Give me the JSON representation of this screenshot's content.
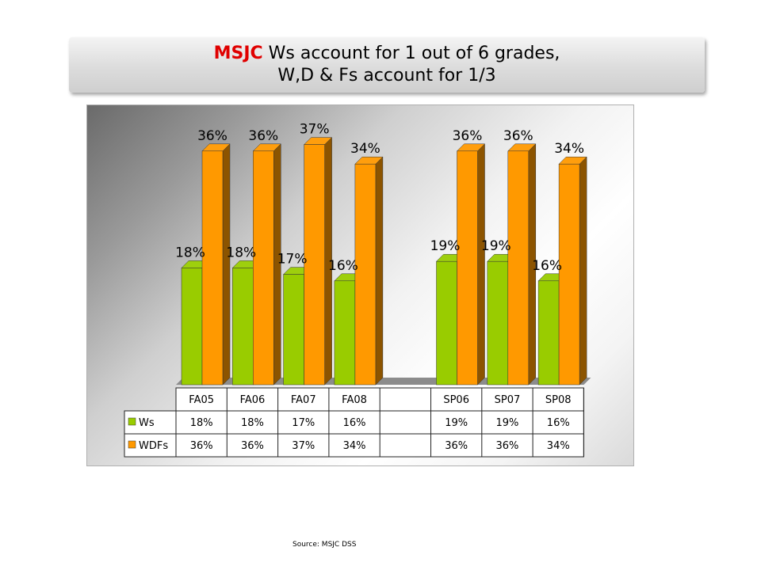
{
  "title": {
    "brand": "MSJC",
    "line1_rest": " Ws account for 1 out of 6 grades,",
    "line2": "W,D & Fs account for 1/3"
  },
  "source": "Source: MSJC DSS",
  "colors": {
    "ws": "#99cc00",
    "wdfs": "#ff9900"
  },
  "chart_data": {
    "type": "bar",
    "title": "",
    "categories": [
      "FA05",
      "FA06",
      "FA07",
      "FA08",
      "",
      "SP06",
      "SP07",
      "SP08"
    ],
    "series": [
      {
        "name": "Ws",
        "values": [
          18,
          18,
          17,
          16,
          null,
          19,
          19,
          16
        ],
        "labels": [
          "18%",
          "18%",
          "17%",
          "16%",
          "",
          "19%",
          "19%",
          "16%"
        ]
      },
      {
        "name": "WDFs",
        "values": [
          36,
          36,
          37,
          34,
          null,
          36,
          36,
          34
        ],
        "labels": [
          "36%",
          "36%",
          "37%",
          "34%",
          "",
          "36%",
          "36%",
          "34%"
        ]
      }
    ],
    "unit": "%",
    "ylim": [
      0,
      40
    ],
    "grid": false,
    "legend": "data-table",
    "data_table": true
  }
}
